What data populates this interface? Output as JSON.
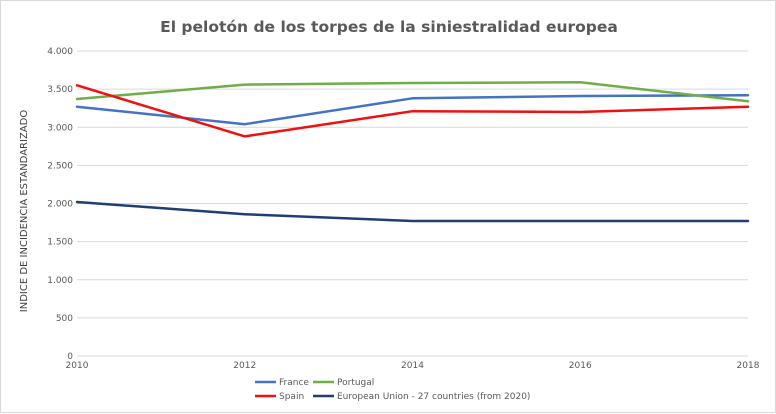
{
  "chart_data": {
    "type": "line",
    "title": "El pelotón de los torpes de la siniestralidad europea",
    "xlabel": "",
    "ylabel": "INDICE DE INCIDENCIA ESTANDARIZADO",
    "x": [
      2010,
      2012,
      2014,
      2016,
      2018
    ],
    "x_tick_labels": [
      "2010",
      "2012",
      "2014",
      "2016",
      "2018"
    ],
    "ylim": [
      0,
      4000
    ],
    "y_ticks": [
      0,
      500,
      1000,
      1500,
      2000,
      2500,
      3000,
      3500,
      4000
    ],
    "y_tick_labels": [
      "0",
      "500",
      "1.000",
      "1.500",
      "2.000",
      "2.500",
      "3.000",
      "3.500",
      "4.000"
    ],
    "grid": true,
    "legend_position": "bottom",
    "series": [
      {
        "name": "France",
        "color": "#4472c4",
        "values": [
          3270,
          3040,
          3380,
          3410,
          3420
        ]
      },
      {
        "name": "Portugal",
        "color": "#70ad47",
        "values": [
          3370,
          3560,
          3580,
          3590,
          3340
        ]
      },
      {
        "name": "Spain",
        "color": "#ee1111",
        "values": [
          3550,
          2880,
          3210,
          3200,
          3270
        ]
      },
      {
        "name": "European Union - 27 countries (from 2020)",
        "color": "#1f3f73",
        "values": [
          2020,
          1860,
          1770,
          1770,
          1770
        ]
      }
    ]
  }
}
